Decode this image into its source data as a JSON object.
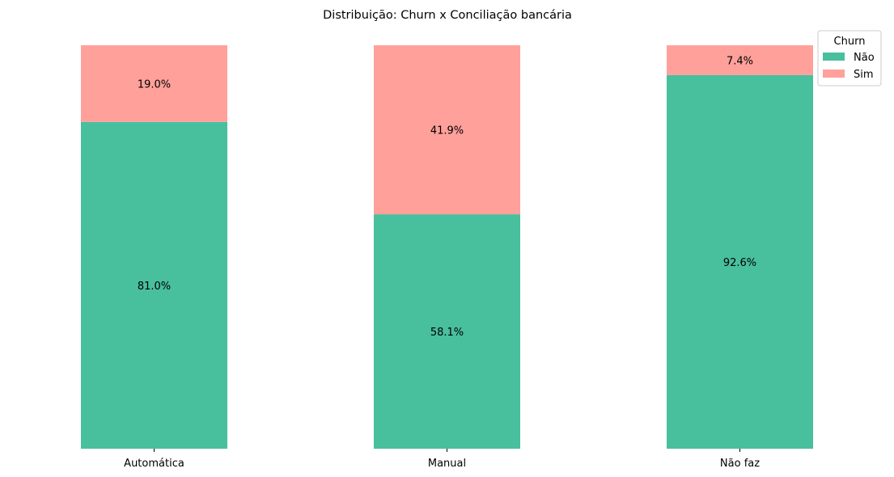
{
  "chart_data": {
    "type": "bar",
    "stacked": true,
    "normalized": true,
    "title": "Distribuição: Churn x Conciliação bancária",
    "xlabel": "",
    "ylabel": "",
    "categories": [
      "Automática",
      "Manual",
      "Não faz"
    ],
    "ylim": [
      0,
      100
    ],
    "grid": false,
    "legend": {
      "title": "Churn",
      "placement": "top-right"
    },
    "series": [
      {
        "name": "Não",
        "color": "#48bf9d",
        "values": [
          81.0,
          58.1,
          92.6
        ],
        "labels": [
          "81.0%",
          "58.1%",
          "92.6%"
        ]
      },
      {
        "name": "Sim",
        "color": "#ffa09a",
        "values": [
          19.0,
          41.9,
          7.4
        ],
        "labels": [
          "19.0%",
          "41.9%",
          "7.4%"
        ]
      }
    ]
  }
}
